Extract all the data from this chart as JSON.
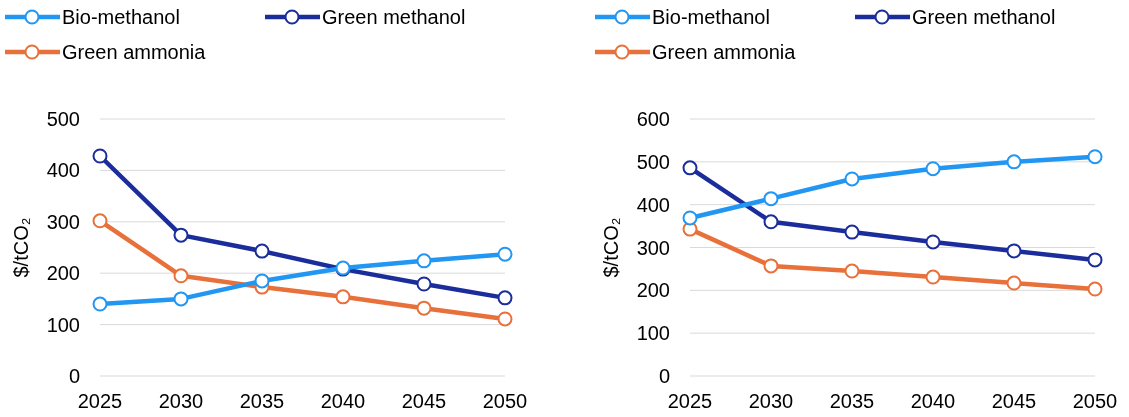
{
  "chart_data": [
    {
      "type": "line",
      "ylabel": "$/tCO₂",
      "categories": [
        "2025",
        "2030",
        "2035",
        "2040",
        "2045",
        "2050"
      ],
      "ylim": [
        0,
        500
      ],
      "yticks": [
        0,
        100,
        200,
        300,
        400,
        500
      ],
      "grid": "y",
      "legend": "top left",
      "marker": "circle",
      "line_style": "solid",
      "series": [
        {
          "name": "Bio-methanol",
          "color": "#2196f3",
          "values": [
            140,
            150,
            185,
            210,
            224,
            237
          ]
        },
        {
          "name": "Green methanol",
          "color": "#1a2d9b",
          "values": [
            428,
            274,
            243,
            208,
            179,
            152
          ]
        },
        {
          "name": "Green ammonia",
          "color": "#e8703a",
          "values": [
            302,
            195,
            173,
            154,
            132,
            111
          ]
        }
      ]
    },
    {
      "type": "line",
      "ylabel": "$/tCO₂",
      "categories": [
        "2025",
        "2030",
        "2035",
        "2040",
        "2045",
        "2050"
      ],
      "ylim": [
        0,
        600
      ],
      "yticks": [
        0,
        100,
        200,
        300,
        400,
        500,
        600
      ],
      "grid": "y",
      "legend": "top left",
      "marker": "circle",
      "line_style": "solid",
      "series": [
        {
          "name": "Bio-methanol",
          "color": "#2196f3",
          "values": [
            369,
            414,
            460,
            484,
            500,
            512
          ]
        },
        {
          "name": "Green methanol",
          "color": "#1a2d9b",
          "values": [
            486,
            360,
            336,
            313,
            292,
            271
          ]
        },
        {
          "name": "Green ammonia",
          "color": "#e8703a",
          "values": [
            343,
            257,
            245,
            231,
            217,
            203
          ]
        }
      ]
    }
  ]
}
